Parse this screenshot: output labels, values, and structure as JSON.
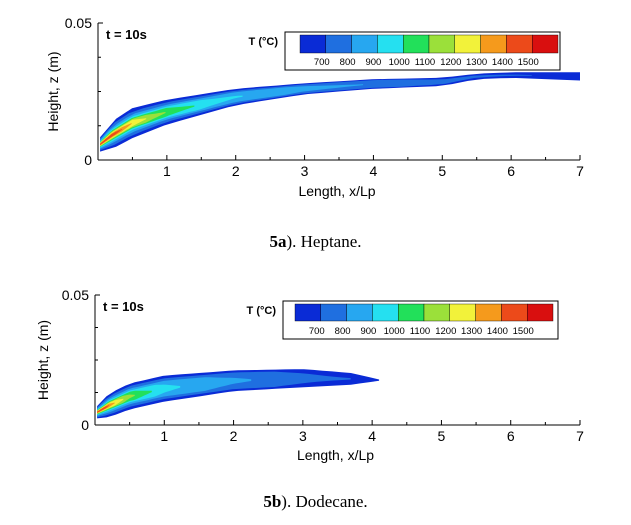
{
  "chart_data": [
    {
      "id": "a",
      "type": "contour",
      "time_label": "t = 10s",
      "xlabel": "Length, x/Lp",
      "ylabel": "Height, z (m)",
      "xlim": [
        0,
        7
      ],
      "ylim": [
        0,
        0.05
      ],
      "xticks": [
        "1",
        "2",
        "3",
        "4",
        "5",
        "6",
        "7"
      ],
      "yticks": [
        "0",
        "0.05"
      ],
      "legend": {
        "title": "T (°C)",
        "levels": [
          "700",
          "800",
          "900",
          "1000",
          "1100",
          "1200",
          "1300",
          "1400",
          "1500"
        ],
        "colors": [
          "#0a2bd6",
          "#1f6fe0",
          "#27a7f0",
          "#25e0f0",
          "#22e05a",
          "#9be03a",
          "#f2f23a",
          "#f59a1c",
          "#ec4a1a",
          "#d90f0f"
        ]
      },
      "plume": {
        "upper": [
          [
            0.02,
            0.008
          ],
          [
            0.2,
            0.014
          ],
          [
            0.5,
            0.019
          ],
          [
            1,
            0.022
          ],
          [
            2,
            0.026
          ],
          [
            3,
            0.028
          ],
          [
            4,
            0.0295
          ],
          [
            5,
            0.03
          ],
          [
            5.5,
            0.0315
          ],
          [
            6,
            0.032
          ],
          [
            7,
            0.032
          ]
        ],
        "lower": [
          [
            7,
            0.029
          ],
          [
            6,
            0.03
          ],
          [
            5.5,
            0.0295
          ],
          [
            5,
            0.027
          ],
          [
            4,
            0.026
          ],
          [
            3,
            0.024
          ],
          [
            2,
            0.02
          ],
          [
            1,
            0.013
          ],
          [
            0.5,
            0.008
          ],
          [
            0.2,
            0.004
          ],
          [
            0.02,
            0.003
          ]
        ]
      },
      "caption_num": "5a",
      "caption_text": "). Heptane."
    },
    {
      "id": "b",
      "type": "contour",
      "time_label": "t = 10s",
      "xlabel": "Length, x/Lp",
      "ylabel": "Height, z (m)",
      "xlim": [
        0,
        7
      ],
      "ylim": [
        0,
        0.05
      ],
      "xticks": [
        "1",
        "2",
        "3",
        "4",
        "5",
        "6",
        "7"
      ],
      "yticks": [
        "0",
        "0.05"
      ],
      "legend": {
        "title": "T (°C)",
        "levels": [
          "700",
          "800",
          "900",
          "1000",
          "1100",
          "1200",
          "1300",
          "1400",
          "1500"
        ],
        "colors": [
          "#0a2bd6",
          "#1f6fe0",
          "#27a7f0",
          "#25e0f0",
          "#22e05a",
          "#9be03a",
          "#f2f23a",
          "#f59a1c",
          "#ec4a1a",
          "#d90f0f"
        ]
      },
      "plume": {
        "upper": [
          [
            0.02,
            0.007
          ],
          [
            0.2,
            0.012
          ],
          [
            0.5,
            0.016
          ],
          [
            1,
            0.019
          ],
          [
            2,
            0.021
          ],
          [
            3,
            0.0215
          ],
          [
            3.7,
            0.02
          ],
          [
            4.1,
            0.0175
          ]
        ],
        "lower": [
          [
            4.1,
            0.017
          ],
          [
            3.7,
            0.0155
          ],
          [
            3,
            0.0145
          ],
          [
            2,
            0.013
          ],
          [
            1,
            0.009
          ],
          [
            0.5,
            0.006
          ],
          [
            0.2,
            0.003
          ],
          [
            0.02,
            0.0025
          ]
        ]
      },
      "caption_num": "5b",
      "caption_text": "). Dodecane."
    }
  ]
}
